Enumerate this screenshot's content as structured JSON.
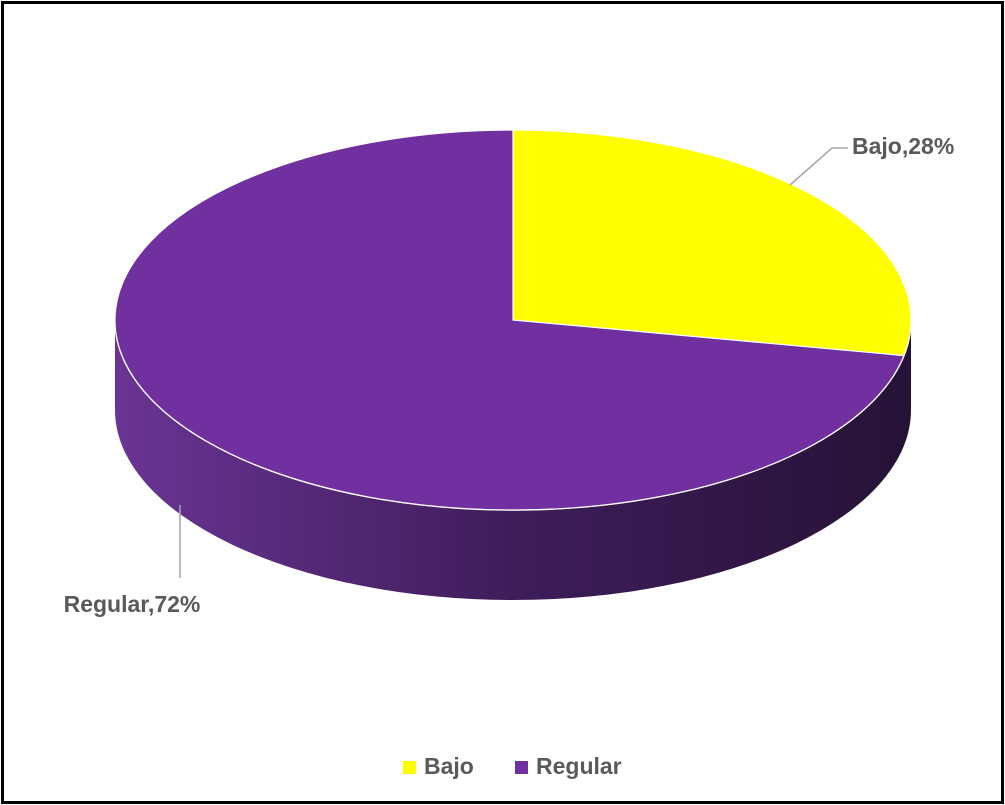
{
  "chart_data": {
    "type": "pie",
    "three_d": true,
    "categories": [
      "Bajo",
      "Regular"
    ],
    "values": [
      28,
      72
    ],
    "unit": "%",
    "colors": [
      "#ffff00",
      "#7030a0"
    ],
    "data_labels": [
      "Bajo,28%",
      "Regular,72%"
    ],
    "legend": {
      "placement": "bottom",
      "entries": [
        {
          "label": "Bajo",
          "color": "#ffff00"
        },
        {
          "label": "Regular",
          "color": "#7030a0"
        }
      ]
    },
    "title": ""
  }
}
